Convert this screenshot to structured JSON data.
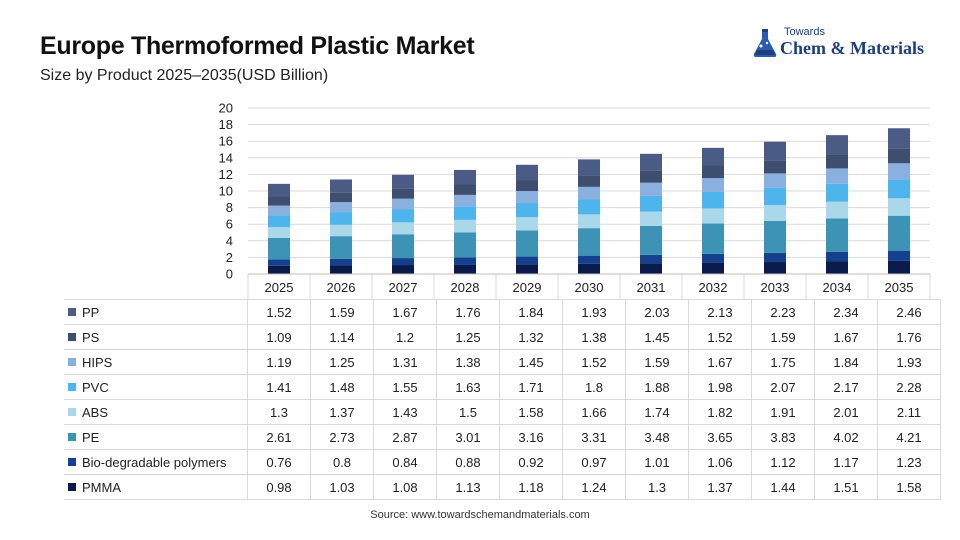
{
  "header": {
    "title": "Europe Thermoformed Plastic Market",
    "subtitle": "Size by Product 2025–2035(USD Billion)"
  },
  "logo": {
    "top_text": "Towards",
    "main_text": "Chem & Materials",
    "icon": "flask-icon"
  },
  "footer": {
    "source": "Source:  www.towardschemandmaterials.com"
  },
  "chart_data": {
    "type": "bar",
    "stacked": true,
    "categories": [
      "2025",
      "2026",
      "2027",
      "2028",
      "2029",
      "2030",
      "2031",
      "2032",
      "2033",
      "2034",
      "2035"
    ],
    "ylim": [
      0,
      20
    ],
    "yticks": [
      0,
      2,
      4,
      6,
      8,
      10,
      12,
      14,
      16,
      18,
      20
    ],
    "grid": true,
    "series": [
      {
        "name": "PMMA",
        "color": "#0a1a4a",
        "values": [
          0.98,
          1.03,
          1.08,
          1.13,
          1.18,
          1.24,
          1.3,
          1.37,
          1.44,
          1.51,
          1.58
        ]
      },
      {
        "name": "Bio-degradable polymers",
        "color": "#15408e",
        "values": [
          0.76,
          0.8,
          0.84,
          0.88,
          0.92,
          0.97,
          1.01,
          1.06,
          1.12,
          1.17,
          1.23
        ]
      },
      {
        "name": "PE",
        "color": "#3d93b5",
        "values": [
          2.61,
          2.73,
          2.87,
          3.01,
          3.16,
          3.31,
          3.48,
          3.65,
          3.83,
          4.02,
          4.21
        ]
      },
      {
        "name": "ABS",
        "color": "#a8d8ea",
        "values": [
          1.3,
          1.37,
          1.43,
          1.5,
          1.58,
          1.66,
          1.74,
          1.82,
          1.91,
          2.01,
          2.11
        ]
      },
      {
        "name": "PVC",
        "color": "#4db4ec",
        "values": [
          1.41,
          1.48,
          1.55,
          1.63,
          1.71,
          1.8,
          1.88,
          1.98,
          2.07,
          2.17,
          2.28
        ]
      },
      {
        "name": "HIPS",
        "color": "#8ab0df",
        "values": [
          1.19,
          1.25,
          1.31,
          1.38,
          1.45,
          1.52,
          1.59,
          1.67,
          1.75,
          1.84,
          1.93
        ]
      },
      {
        "name": "PS",
        "color": "#3e4e6e",
        "values": [
          1.09,
          1.14,
          1.2,
          1.25,
          1.32,
          1.38,
          1.45,
          1.52,
          1.59,
          1.67,
          1.76
        ]
      },
      {
        "name": "PP",
        "color": "#4a5b85",
        "values": [
          1.52,
          1.59,
          1.67,
          1.76,
          1.84,
          1.93,
          2.03,
          2.13,
          2.23,
          2.34,
          2.46
        ]
      }
    ],
    "table_order": [
      "PP",
      "PS",
      "HIPS",
      "PVC",
      "ABS",
      "PE",
      "Bio-degradable polymers",
      "PMMA"
    ]
  }
}
